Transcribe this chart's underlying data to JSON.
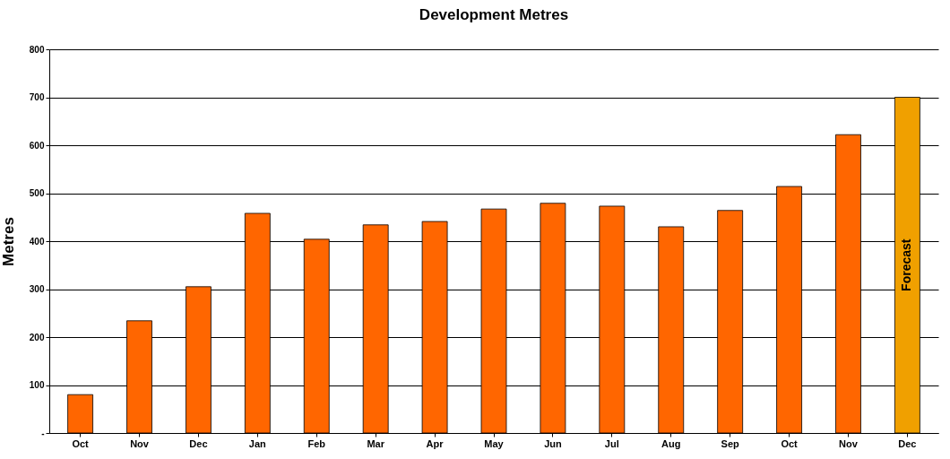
{
  "chart_data": {
    "type": "bar",
    "title": "Development Metres",
    "ylabel": "Metres",
    "categories": [
      "Oct",
      "Nov",
      "Dec",
      "Jan",
      "Feb",
      "Mar",
      "Apr",
      "May",
      "Jun",
      "Jul",
      "Aug",
      "Sep",
      "Oct",
      "Nov",
      "Dec"
    ],
    "values": [
      80,
      234,
      305,
      458,
      404,
      434,
      441,
      467,
      479,
      473,
      430,
      464,
      514,
      622,
      700
    ],
    "colors": [
      "#ff6600",
      "#ff6600",
      "#ff6600",
      "#ff6600",
      "#ff6600",
      "#ff6600",
      "#ff6600",
      "#ff6600",
      "#ff6600",
      "#ff6600",
      "#ff6600",
      "#ff6600",
      "#ff6600",
      "#ff6600",
      "#f0a000"
    ],
    "ylim": [
      0,
      800
    ],
    "yticks": [
      {
        "value": 0,
        "label": "-"
      },
      100,
      200,
      300,
      400,
      500,
      600,
      700,
      800
    ],
    "grid": "y",
    "annotations": [
      "Forecast"
    ]
  }
}
